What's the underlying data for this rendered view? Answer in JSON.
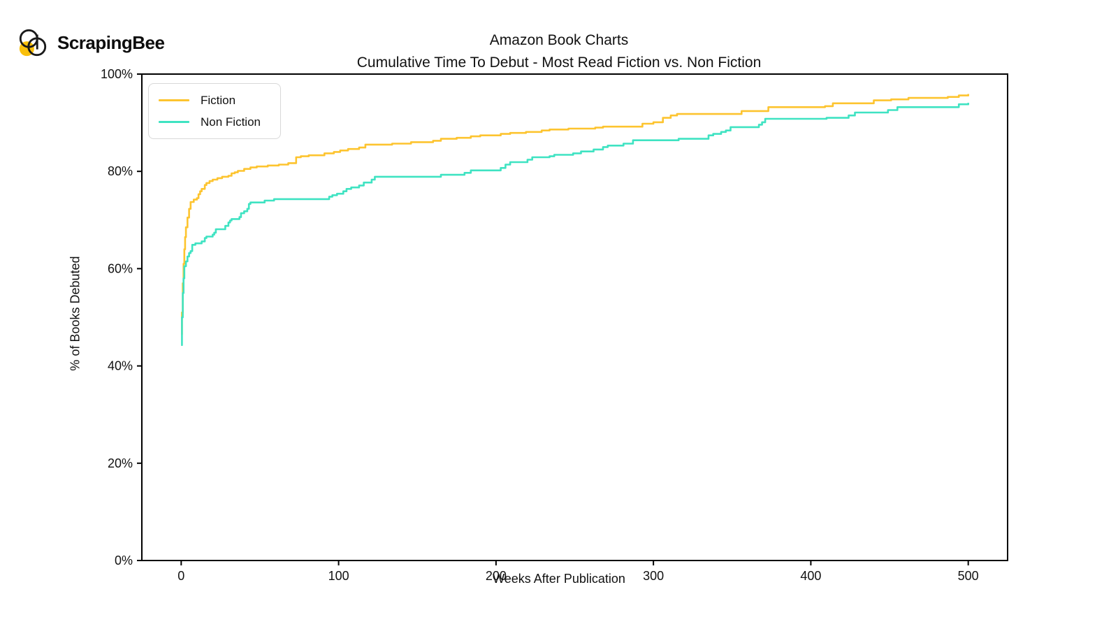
{
  "branding": {
    "logo_text": "ScrapingBee",
    "logo_yellow": "#F9C00C",
    "logo_outline": "#1a1a1a"
  },
  "chart_data": {
    "type": "line",
    "step": true,
    "title": "Amazon Book Charts",
    "subtitle": "Cumulative Time To Debut - Most Read Fiction vs. Non Fiction",
    "xlabel": "Weeks After Publication",
    "ylabel": "% of Books Debuted",
    "xlim": [
      -25,
      525
    ],
    "ylim": [
      0,
      100
    ],
    "x_ticks": [
      0,
      100,
      200,
      300,
      400,
      500
    ],
    "y_ticks": [
      0,
      20,
      40,
      60,
      80,
      100
    ],
    "y_tick_suffix": "%",
    "grid": false,
    "legend_position": "top-left",
    "series": [
      {
        "name": "Fiction",
        "color": "#FDC42F",
        "points": [
          [
            0,
            46.5
          ],
          [
            0.5,
            51
          ],
          [
            1,
            57
          ],
          [
            1.5,
            61
          ],
          [
            2,
            64
          ],
          [
            2.5,
            66.5
          ],
          [
            3,
            68.5
          ],
          [
            4,
            70.5
          ],
          [
            5,
            72.3
          ],
          [
            6,
            73.7
          ],
          [
            8,
            74.2
          ],
          [
            10,
            74.5
          ],
          [
            11,
            75.3
          ],
          [
            12,
            75.9
          ],
          [
            13,
            76.4
          ],
          [
            15,
            77.2
          ],
          [
            16,
            77.6
          ],
          [
            18,
            78
          ],
          [
            20,
            78.3
          ],
          [
            23,
            78.6
          ],
          [
            26,
            78.9
          ],
          [
            30,
            79.1
          ],
          [
            32,
            79.6
          ],
          [
            34,
            79.8
          ],
          [
            36,
            80.1
          ],
          [
            40,
            80.5
          ],
          [
            44,
            80.8
          ],
          [
            48,
            81
          ],
          [
            55,
            81.2
          ],
          [
            62,
            81.4
          ],
          [
            68,
            81.7
          ],
          [
            73,
            82.9
          ],
          [
            76,
            83.1
          ],
          [
            81,
            83.3
          ],
          [
            91,
            83.7
          ],
          [
            97,
            84
          ],
          [
            101,
            84.3
          ],
          [
            106,
            84.6
          ],
          [
            113,
            84.9
          ],
          [
            117,
            85.5
          ],
          [
            134,
            85.7
          ],
          [
            146,
            86
          ],
          [
            160,
            86.3
          ],
          [
            165,
            86.7
          ],
          [
            175,
            86.9
          ],
          [
            184,
            87.2
          ],
          [
            190,
            87.4
          ],
          [
            203,
            87.7
          ],
          [
            209,
            87.9
          ],
          [
            219,
            88.1
          ],
          [
            229,
            88.4
          ],
          [
            234,
            88.6
          ],
          [
            246,
            88.8
          ],
          [
            263,
            89
          ],
          [
            268,
            89.2
          ],
          [
            293,
            89.8
          ],
          [
            300,
            90.1
          ],
          [
            306,
            91
          ],
          [
            311,
            91.5
          ],
          [
            315,
            91.8
          ],
          [
            356,
            92.4
          ],
          [
            373,
            93.2
          ],
          [
            409,
            93.4
          ],
          [
            414,
            94
          ],
          [
            440,
            94.6
          ],
          [
            451,
            94.8
          ],
          [
            462,
            95.1
          ],
          [
            487,
            95.3
          ],
          [
            494,
            95.6
          ],
          [
            500,
            95.9
          ]
        ]
      },
      {
        "name": "Non Fiction",
        "color": "#3FE3C2",
        "points": [
          [
            0,
            44.3
          ],
          [
            0.5,
            50
          ],
          [
            1,
            55
          ],
          [
            1.5,
            58
          ],
          [
            2,
            60.5
          ],
          [
            3,
            61.5
          ],
          [
            4,
            62.5
          ],
          [
            5,
            63.2
          ],
          [
            6,
            63.6
          ],
          [
            7,
            64.9
          ],
          [
            9,
            65.2
          ],
          [
            13,
            65.6
          ],
          [
            15,
            66.3
          ],
          [
            16,
            66.6
          ],
          [
            20,
            67
          ],
          [
            21,
            67.4
          ],
          [
            22,
            68.1
          ],
          [
            28,
            68.8
          ],
          [
            30,
            69.5
          ],
          [
            31,
            69.9
          ],
          [
            32,
            70.2
          ],
          [
            37,
            70.6
          ],
          [
            38,
            71.4
          ],
          [
            40,
            71.8
          ],
          [
            42,
            72.3
          ],
          [
            43,
            73.3
          ],
          [
            44,
            73.6
          ],
          [
            53,
            74
          ],
          [
            59,
            74.3
          ],
          [
            94,
            74.8
          ],
          [
            96,
            75.1
          ],
          [
            99,
            75.4
          ],
          [
            103,
            75.9
          ],
          [
            105,
            76.4
          ],
          [
            108,
            76.7
          ],
          [
            113,
            77.1
          ],
          [
            116,
            77.7
          ],
          [
            121,
            78.3
          ],
          [
            123,
            78.9
          ],
          [
            165,
            79.3
          ],
          [
            180,
            79.7
          ],
          [
            184,
            80.2
          ],
          [
            203,
            80.7
          ],
          [
            206,
            81.4
          ],
          [
            209,
            81.9
          ],
          [
            220,
            82.4
          ],
          [
            223,
            82.9
          ],
          [
            234,
            83.1
          ],
          [
            237,
            83.4
          ],
          [
            249,
            83.7
          ],
          [
            254,
            84.1
          ],
          [
            262,
            84.5
          ],
          [
            268,
            85
          ],
          [
            271,
            85.3
          ],
          [
            281,
            85.7
          ],
          [
            287,
            86.4
          ],
          [
            316,
            86.7
          ],
          [
            335,
            87.4
          ],
          [
            338,
            87.7
          ],
          [
            343,
            88.1
          ],
          [
            346,
            88.4
          ],
          [
            349,
            89.1
          ],
          [
            367,
            89.6
          ],
          [
            369,
            90.1
          ],
          [
            371,
            90.8
          ],
          [
            410,
            91
          ],
          [
            424,
            91.5
          ],
          [
            428,
            92.1
          ],
          [
            449,
            92.6
          ],
          [
            455,
            93.2
          ],
          [
            494,
            93.8
          ],
          [
            500,
            94.1
          ]
        ]
      }
    ]
  }
}
